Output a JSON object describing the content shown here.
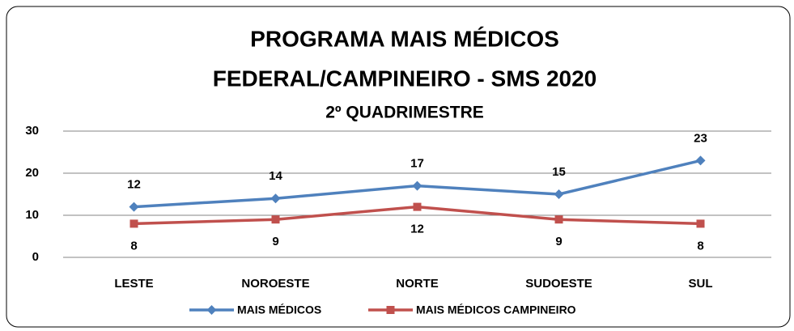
{
  "chart_data": {
    "type": "line",
    "title": [
      "PROGRAMA MAIS MÉDICOS",
      "FEDERAL/CAMPINEIRO - SMS 2020"
    ],
    "subtitle": "2º QUADRIMESTRE",
    "categories": [
      "LESTE",
      "NOROESTE",
      "NORTE",
      "SUDOESTE",
      "SUL"
    ],
    "series": [
      {
        "name": "MAIS MÉDICOS",
        "color": "#4f81bd",
        "marker": "diamond",
        "values": [
          12,
          14,
          17,
          15,
          23
        ]
      },
      {
        "name": "MAIS MÉDICOS CAMPINEIRO",
        "color": "#c0504d",
        "marker": "square",
        "values": [
          8,
          9,
          12,
          9,
          8
        ]
      }
    ],
    "ylim": [
      0,
      30
    ],
    "yticks": [
      0,
      10,
      20,
      30
    ],
    "grid": true,
    "legend": "bottom"
  }
}
